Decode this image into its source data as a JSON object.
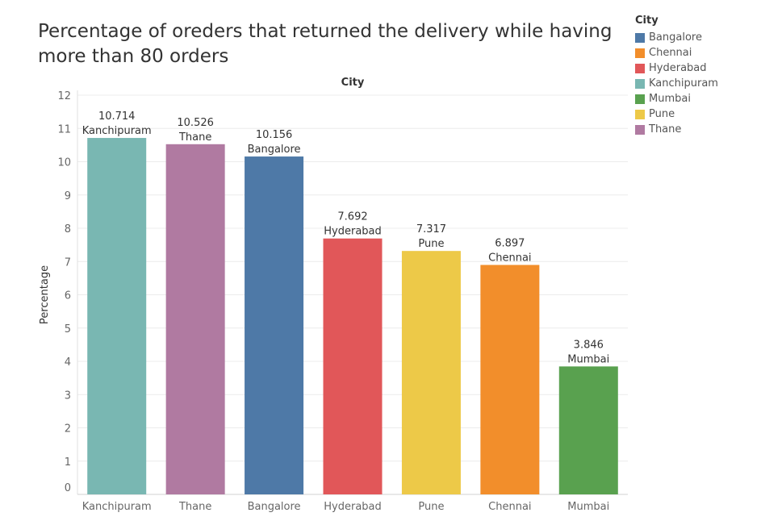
{
  "chart_data": {
    "type": "bar",
    "title": "Percentage of oreders that returned the delivery while having more than 80 orders",
    "column_header": "City",
    "ylabel": "Percentage",
    "xlabel": "",
    "ylim": [
      0,
      12
    ],
    "yticks": [
      0,
      1,
      2,
      3,
      4,
      5,
      6,
      7,
      8,
      9,
      10,
      11,
      12
    ],
    "categories": [
      "Kanchipuram",
      "Thane",
      "Bangalore",
      "Hyderabad",
      "Pune",
      "Chennai",
      "Mumbai"
    ],
    "values": [
      10.714,
      10.526,
      10.156,
      7.692,
      7.317,
      6.897,
      3.846
    ],
    "value_labels": [
      "10.714",
      "10.526",
      "10.156",
      "7.692",
      "7.317",
      "6.897",
      "3.846"
    ],
    "bar_colors": [
      "#79b7b2",
      "#b07aa1",
      "#4e79a7",
      "#e15759",
      "#edc948",
      "#f28e2b",
      "#59a14f"
    ],
    "grid": true,
    "legend": {
      "title": "City",
      "position": "top-right",
      "items": [
        {
          "label": "Bangalore",
          "color": "#4e79a7"
        },
        {
          "label": "Chennai",
          "color": "#f28e2b"
        },
        {
          "label": "Hyderabad",
          "color": "#e15759"
        },
        {
          "label": "Kanchipuram",
          "color": "#79b7b2"
        },
        {
          "label": "Mumbai",
          "color": "#59a14f"
        },
        {
          "label": "Pune",
          "color": "#edc948"
        },
        {
          "label": "Thane",
          "color": "#b07aa1"
        }
      ]
    }
  }
}
